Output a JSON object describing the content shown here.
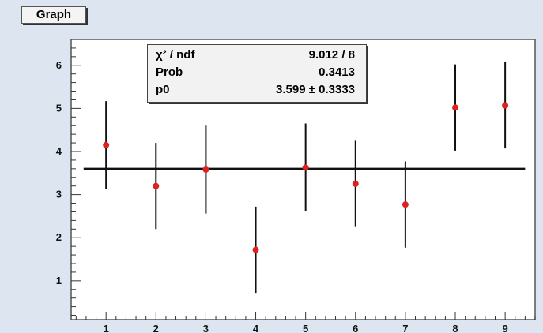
{
  "graph_label": "Graph",
  "stats": [
    {
      "key": "χ² / ndf",
      "value": "9.012 / 8"
    },
    {
      "key": "Prob",
      "value": "0.3413"
    },
    {
      "key": "p0",
      "value": "3.599 ± 0.3333"
    }
  ],
  "chart_data": {
    "type": "scatter",
    "title": "",
    "xlabel": "",
    "ylabel": "",
    "xlim": [
      0.3,
      9.6
    ],
    "ylim": [
      0.1,
      6.6
    ],
    "x_ticks": [
      1,
      2,
      3,
      4,
      5,
      6,
      7,
      8,
      9
    ],
    "y_ticks": [
      1,
      2,
      3,
      4,
      5,
      6
    ],
    "series": [
      {
        "x": [
          1,
          2,
          3,
          4,
          5,
          6,
          7,
          8,
          9
        ],
        "y": [
          4.15,
          3.2,
          3.58,
          1.72,
          3.63,
          3.25,
          2.77,
          5.02,
          5.07
        ],
        "y_err": [
          1.02,
          1.0,
          1.02,
          1.0,
          1.02,
          1.0,
          1.0,
          1.0,
          1.0
        ],
        "color": "#e02020"
      }
    ],
    "fit_line": {
      "y": 3.599,
      "color": "#111111"
    },
    "grid": false,
    "legend": "none"
  }
}
